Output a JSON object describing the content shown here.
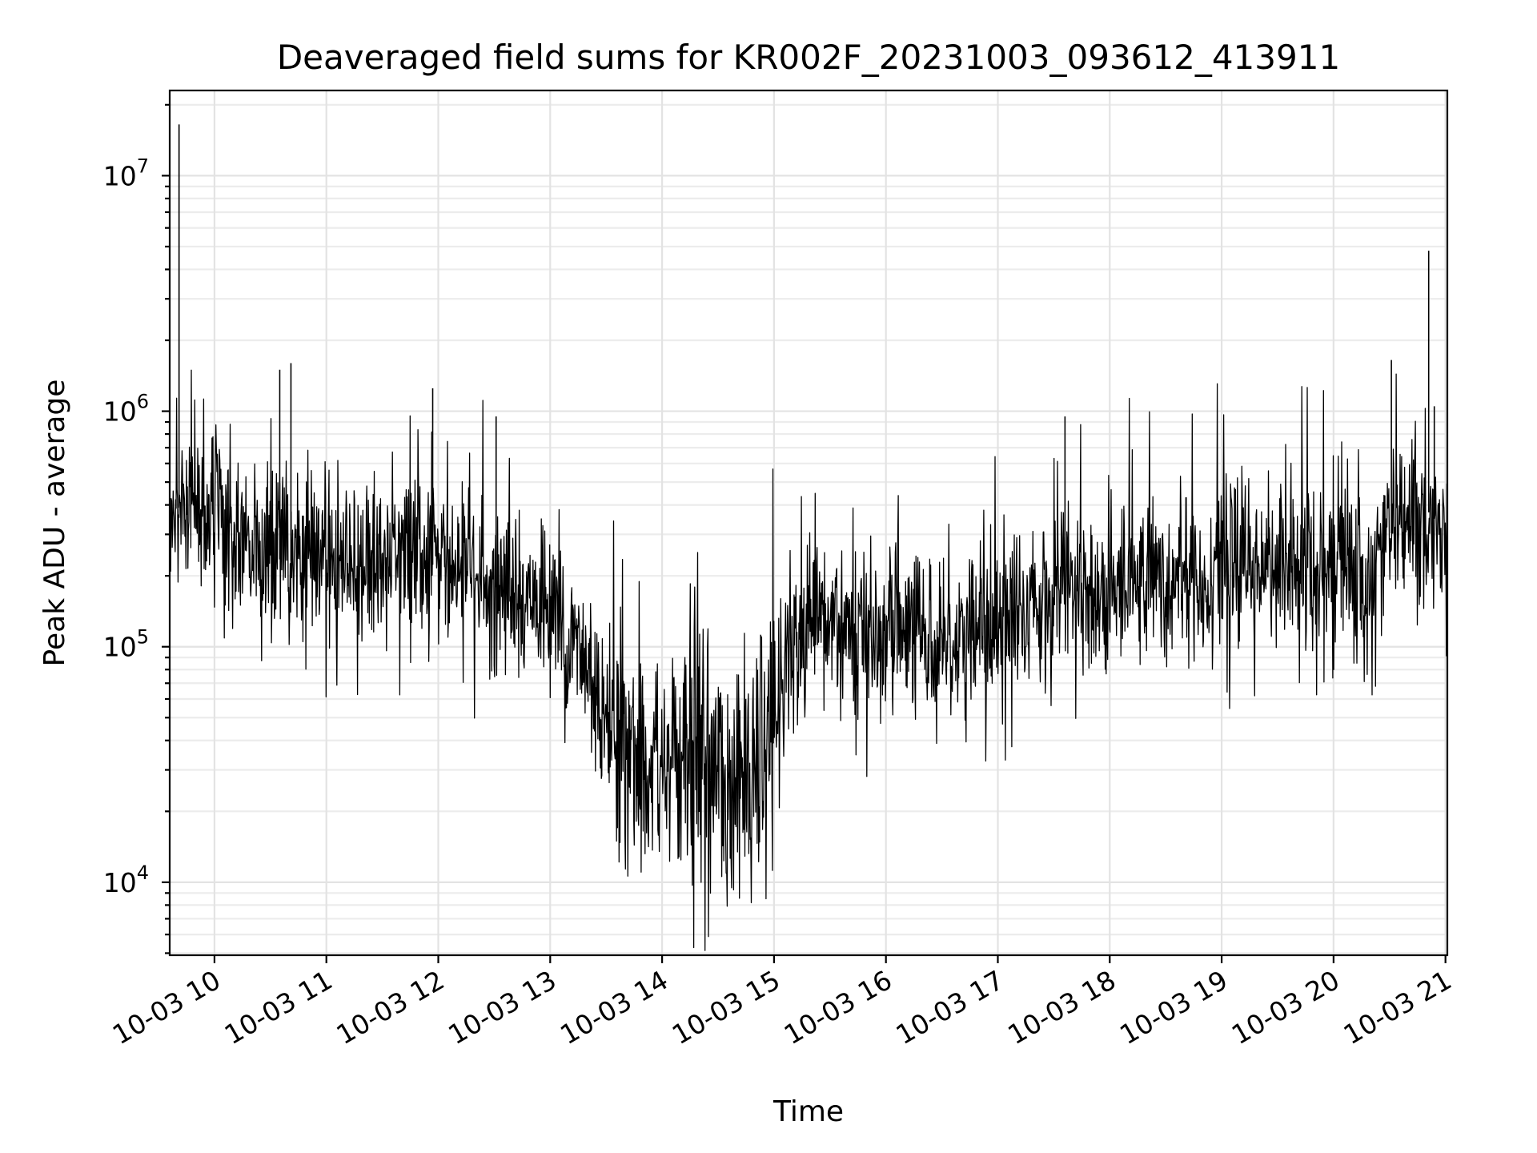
{
  "chart_data": {
    "type": "line",
    "title": "Deaveraged field sums for KR002F_20231003_093612_413911",
    "xlabel": "Time",
    "ylabel": "Peak ADU - average",
    "yscale": "log",
    "grid": true,
    "xlim": [
      "2023-10-03 09:36",
      "2023-10-03 21:01"
    ],
    "ylim": [
      4900,
      23000000
    ],
    "x_ticks": [
      "10-03 10",
      "10-03 11",
      "10-03 12",
      "10-03 13",
      "10-03 14",
      "10-03 15",
      "10-03 16",
      "10-03 17",
      "10-03 18",
      "10-03 19",
      "10-03 20",
      "10-03 21"
    ],
    "y_ticks": [
      {
        "base": "10",
        "exp": "4",
        "value": 10000
      },
      {
        "base": "10",
        "exp": "5",
        "value": 100000
      },
      {
        "base": "10",
        "exp": "6",
        "value": 1000000
      },
      {
        "base": "10",
        "exp": "7",
        "value": 10000000
      }
    ],
    "series": [
      {
        "name": "",
        "color": "#000000",
        "x": [
          "2023-10-03 09:36",
          "2023-10-03 09:40",
          "2023-10-03 09:44",
          "2023-10-03 09:50",
          "2023-10-03 09:55",
          "2023-10-03 10:00",
          "2023-10-03 10:10",
          "2023-10-03 10:20",
          "2023-10-03 10:30",
          "2023-10-03 10:40",
          "2023-10-03 10:50",
          "2023-10-03 11:00",
          "2023-10-03 11:10",
          "2023-10-03 11:20",
          "2023-10-03 11:30",
          "2023-10-03 11:40",
          "2023-10-03 11:50",
          "2023-10-03 12:00",
          "2023-10-03 12:10",
          "2023-10-03 12:20",
          "2023-10-03 12:30",
          "2023-10-03 12:40",
          "2023-10-03 12:50",
          "2023-10-03 13:00",
          "2023-10-03 13:10",
          "2023-10-03 13:20",
          "2023-10-03 13:30",
          "2023-10-03 13:40",
          "2023-10-03 13:50",
          "2023-10-03 14:00",
          "2023-10-03 14:10",
          "2023-10-03 14:20",
          "2023-10-03 14:30",
          "2023-10-03 14:40",
          "2023-10-03 14:50",
          "2023-10-03 15:00",
          "2023-10-03 15:10",
          "2023-10-03 15:20",
          "2023-10-03 15:30",
          "2023-10-03 15:40",
          "2023-10-03 15:50",
          "2023-10-03 16:00",
          "2023-10-03 16:10",
          "2023-10-03 16:20",
          "2023-10-03 16:30",
          "2023-10-03 16:40",
          "2023-10-03 16:50",
          "2023-10-03 17:00",
          "2023-10-03 17:10",
          "2023-10-03 17:20",
          "2023-10-03 17:30",
          "2023-10-03 17:40",
          "2023-10-03 17:50",
          "2023-10-03 18:00",
          "2023-10-03 18:10",
          "2023-10-03 18:20",
          "2023-10-03 18:30",
          "2023-10-03 18:40",
          "2023-10-03 18:50",
          "2023-10-03 19:00",
          "2023-10-03 19:10",
          "2023-10-03 19:20",
          "2023-10-03 19:30",
          "2023-10-03 19:40",
          "2023-10-03 19:50",
          "2023-10-03 20:00",
          "2023-10-03 20:10",
          "2023-10-03 20:20",
          "2023-10-03 20:30",
          "2023-10-03 20:40",
          "2023-10-03 20:50",
          "2023-10-03 21:01"
        ],
        "y": [
          350000,
          380000,
          420000,
          400000,
          380000,
          480000,
          300000,
          250000,
          240000,
          230000,
          250000,
          240000,
          230000,
          230000,
          220000,
          240000,
          230000,
          220000,
          210000,
          190000,
          180000,
          170000,
          160000,
          140000,
          110000,
          80000,
          55000,
          40000,
          30000,
          30000,
          35000,
          32000,
          28000,
          26000,
          30000,
          50000,
          90000,
          110000,
          130000,
          120000,
          115000,
          110000,
          112000,
          113000,
          115000,
          112000,
          110000,
          125000,
          140000,
          160000,
          170000,
          165000,
          160000,
          180000,
          190000,
          200000,
          195000,
          210000,
          205000,
          210000,
          220000,
          215000,
          225000,
          230000,
          220000,
          230000,
          215000,
          190000,
          300000,
          330000,
          380000,
          300000
        ]
      }
    ]
  }
}
